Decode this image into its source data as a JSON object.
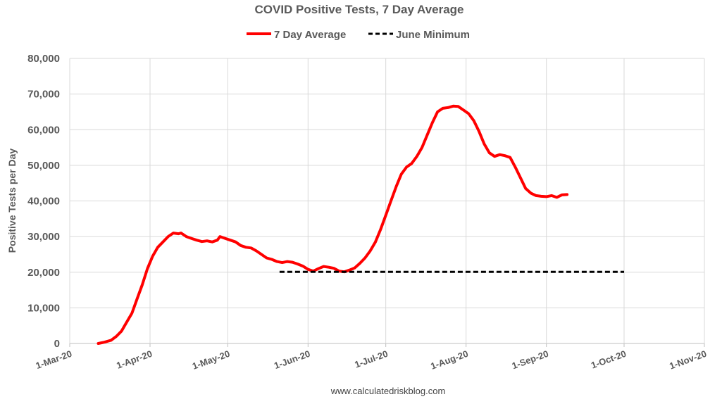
{
  "chart_data": {
    "type": "line",
    "title": "COVID Positive Tests, 7 Day Average",
    "ylabel": "Positive Tests per Day",
    "xlabel": "",
    "ylim": [
      0,
      80000
    ],
    "yticks": [
      "0",
      "10,000",
      "20,000",
      "30,000",
      "40,000",
      "50,000",
      "60,000",
      "70,000",
      "80,000"
    ],
    "xticks": [
      "1-Mar-20",
      "1-Apr-20",
      "1-May-20",
      "1-Jun-20",
      "1-Jul-20",
      "1-Aug-20",
      "1-Sep-20",
      "1-Oct-20",
      "1-Nov-20"
    ],
    "xlim": [
      "2020-03-01",
      "2020-11-01"
    ],
    "grid": true,
    "legend_position": "top",
    "series": [
      {
        "name": "7 Day Average",
        "color": "#ff0000",
        "style": "solid",
        "points": [
          [
            "2020-03-12",
            0
          ],
          [
            "2020-03-14",
            300
          ],
          [
            "2020-03-17",
            900
          ],
          [
            "2020-03-19",
            2000
          ],
          [
            "2020-03-21",
            3500
          ],
          [
            "2020-03-23",
            6000
          ],
          [
            "2020-03-25",
            8500
          ],
          [
            "2020-03-27",
            12500
          ],
          [
            "2020-03-29",
            16500
          ],
          [
            "2020-03-31",
            21000
          ],
          [
            "2020-04-02",
            24500
          ],
          [
            "2020-04-04",
            27000
          ],
          [
            "2020-04-06",
            28500
          ],
          [
            "2020-04-08",
            30000
          ],
          [
            "2020-04-10",
            31000
          ],
          [
            "2020-04-12",
            30800
          ],
          [
            "2020-04-13",
            31000
          ],
          [
            "2020-04-15",
            30000
          ],
          [
            "2020-04-17",
            29500
          ],
          [
            "2020-04-19",
            29000
          ],
          [
            "2020-04-21",
            28600
          ],
          [
            "2020-04-23",
            28800
          ],
          [
            "2020-04-25",
            28500
          ],
          [
            "2020-04-27",
            29000
          ],
          [
            "2020-04-28",
            30000
          ],
          [
            "2020-04-30",
            29500
          ],
          [
            "2020-05-02",
            29000
          ],
          [
            "2020-05-04",
            28500
          ],
          [
            "2020-05-06",
            27500
          ],
          [
            "2020-05-08",
            27000
          ],
          [
            "2020-05-10",
            26800
          ],
          [
            "2020-05-12",
            26000
          ],
          [
            "2020-05-14",
            25000
          ],
          [
            "2020-05-16",
            24000
          ],
          [
            "2020-05-18",
            23600
          ],
          [
            "2020-05-20",
            23000
          ],
          [
            "2020-05-22",
            22700
          ],
          [
            "2020-05-24",
            23000
          ],
          [
            "2020-05-26",
            22800
          ],
          [
            "2020-05-28",
            22300
          ],
          [
            "2020-05-30",
            21700
          ],
          [
            "2020-06-01",
            20800
          ],
          [
            "2020-06-03",
            20300
          ],
          [
            "2020-06-05",
            21000
          ],
          [
            "2020-06-07",
            21600
          ],
          [
            "2020-06-09",
            21400
          ],
          [
            "2020-06-11",
            21100
          ],
          [
            "2020-06-13",
            20300
          ],
          [
            "2020-06-15",
            20100
          ],
          [
            "2020-06-17",
            20600
          ],
          [
            "2020-06-19",
            21200
          ],
          [
            "2020-06-21",
            22500
          ],
          [
            "2020-06-23",
            24000
          ],
          [
            "2020-06-25",
            26000
          ],
          [
            "2020-06-27",
            28500
          ],
          [
            "2020-06-29",
            32000
          ],
          [
            "2020-07-01",
            36000
          ],
          [
            "2020-07-03",
            40000
          ],
          [
            "2020-07-05",
            44000
          ],
          [
            "2020-07-07",
            47500
          ],
          [
            "2020-07-09",
            49500
          ],
          [
            "2020-07-11",
            50500
          ],
          [
            "2020-07-13",
            52500
          ],
          [
            "2020-07-15",
            55000
          ],
          [
            "2020-07-17",
            58500
          ],
          [
            "2020-07-19",
            62000
          ],
          [
            "2020-07-21",
            65000
          ],
          [
            "2020-07-23",
            66000
          ],
          [
            "2020-07-25",
            66200
          ],
          [
            "2020-07-27",
            66600
          ],
          [
            "2020-07-29",
            66500
          ],
          [
            "2020-07-31",
            65500
          ],
          [
            "2020-08-02",
            64500
          ],
          [
            "2020-08-04",
            62500
          ],
          [
            "2020-08-06",
            59500
          ],
          [
            "2020-08-08",
            56000
          ],
          [
            "2020-08-10",
            53500
          ],
          [
            "2020-08-12",
            52500
          ],
          [
            "2020-08-14",
            53000
          ],
          [
            "2020-08-16",
            52700
          ],
          [
            "2020-08-18",
            52200
          ],
          [
            "2020-08-20",
            49500
          ],
          [
            "2020-08-22",
            46500
          ],
          [
            "2020-08-24",
            43500
          ],
          [
            "2020-08-26",
            42200
          ],
          [
            "2020-08-28",
            41500
          ],
          [
            "2020-08-30",
            41300
          ],
          [
            "2020-09-01",
            41200
          ],
          [
            "2020-09-03",
            41500
          ],
          [
            "2020-09-05",
            41000
          ],
          [
            "2020-09-07",
            41700
          ],
          [
            "2020-09-09",
            41800
          ]
        ]
      },
      {
        "name": "June Minimum",
        "color": "#000000",
        "style": "dashed",
        "points": [
          [
            "2020-05-21",
            20100
          ],
          [
            "2020-10-01",
            20100
          ]
        ]
      }
    ]
  },
  "footer": {
    "source": "www.calculatedriskblog.com"
  }
}
